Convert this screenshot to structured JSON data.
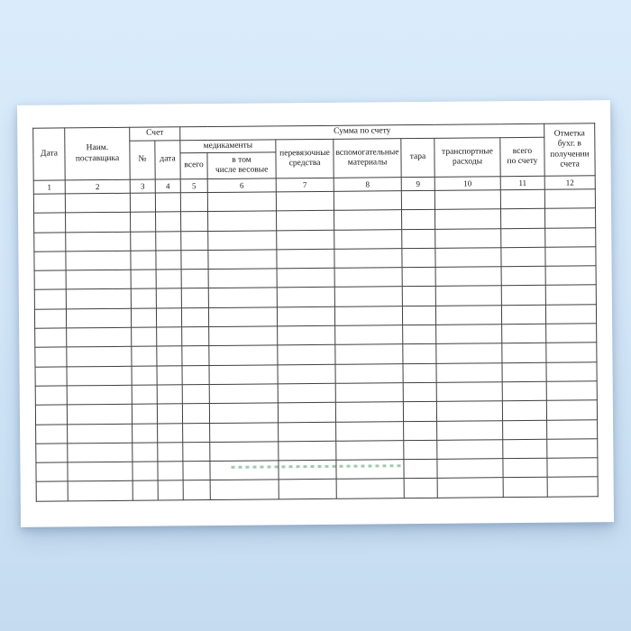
{
  "page": {
    "background_top": "#daecfb",
    "background_mid": "#d3e7f8",
    "background_bottom": "#c5dbf0"
  },
  "paper": {
    "color": "#ffffff"
  },
  "table": {
    "border_color": "#3f3f3f",
    "header": {
      "date": "Дата",
      "supplier": "Наим.\nпоставщика",
      "account": "Счет",
      "account_number": "№",
      "account_date": "дата",
      "amount": "Сумма по счету",
      "medicines": "медикаменты",
      "medicines_total": "всего",
      "medicines_weighed": "в том\nчисле весовые",
      "dressings": "перевязочные\nсредства",
      "auxiliary": "вспомогательные\nматериалы",
      "tare": "тара",
      "transport": "транспортные\nрасходы",
      "invoice_total": "всего\nпо счету",
      "receipt_mark": "Отметка\nбухг. в\nполучении\nсчета"
    },
    "column_numbers": [
      "1",
      "2",
      "3",
      "4",
      "5",
      "6",
      "7",
      "8",
      "9",
      "10",
      "11",
      "12"
    ],
    "empty_row_count": 16
  },
  "watermark": {
    "color": "#2e8b57"
  }
}
